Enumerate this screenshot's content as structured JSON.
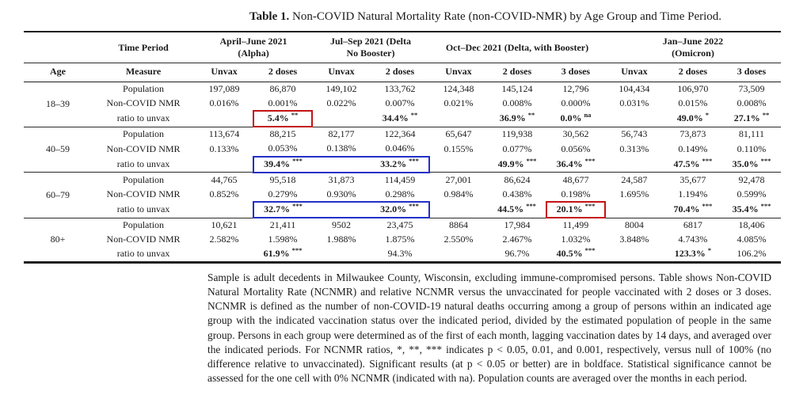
{
  "caption": {
    "label": "Table 1.",
    "text": "Non-COVID Natural Mortality Rate (non-COVID-NMR) by Age Group and Time Period."
  },
  "table": {
    "corner": {
      "time_period": "Time Period",
      "age": "Age",
      "measure": "Measure"
    },
    "groups": [
      {
        "lines": [
          "April–June 2021",
          "(Alpha)"
        ],
        "cols": [
          "Unvax",
          "2 doses"
        ]
      },
      {
        "lines": [
          "Jul–Sep 2021 (Delta",
          "No Booster)"
        ],
        "cols": [
          "Unvax",
          "2 doses"
        ]
      },
      {
        "lines": [
          "Oct–Dec 2021 (Delta, with Booster)"
        ],
        "cols": [
          "Unvax",
          "2 doses",
          "3 doses"
        ]
      },
      {
        "lines": [
          "Jan–June 2022",
          "(Omicron)"
        ],
        "cols": [
          "Unvax",
          "2 doses",
          "3 doses"
        ]
      }
    ],
    "measures": [
      "Population",
      "Non-COVID NMR",
      "ratio to unvax"
    ],
    "highlight_colors": {
      "red": "#c41414",
      "blue": "#2230c8"
    },
    "age_groups": [
      {
        "age": "18–39",
        "population": [
          "197,089",
          "86,870",
          "149,102",
          "133,762",
          "124,348",
          "145,124",
          "12,796",
          "104,434",
          "106,970",
          "73,509"
        ],
        "nmr": [
          "0.016%",
          "0.001%",
          "0.022%",
          "0.007%",
          "0.021%",
          "0.008%",
          "0.000%",
          "0.031%",
          "0.015%",
          "0.008%"
        ],
        "ratio": [
          {
            "v": ""
          },
          {
            "v": "5.4%",
            "sig": "**",
            "bold": true,
            "box": "red"
          },
          {
            "v": ""
          },
          {
            "v": "34.4%",
            "sig": "**",
            "bold": true
          },
          {
            "v": ""
          },
          {
            "v": "36.9%",
            "sig": "**",
            "bold": true
          },
          {
            "v": "0.0%",
            "sig": "na",
            "bold": true
          },
          {
            "v": ""
          },
          {
            "v": "49.0%",
            "sig": "*",
            "bold": true
          },
          {
            "v": "27.1%",
            "sig": "**",
            "bold": true
          }
        ]
      },
      {
        "age": "40–59",
        "population": [
          "113,674",
          "88,215",
          "82,177",
          "122,364",
          "65,647",
          "119,938",
          "30,562",
          "56,743",
          "73,873",
          "81,111"
        ],
        "nmr": [
          "0.133%",
          "0.053%",
          "0.138%",
          "0.046%",
          "0.155%",
          "0.077%",
          "0.056%",
          "0.313%",
          "0.149%",
          "0.110%"
        ],
        "ratio": [
          {
            "v": ""
          },
          {
            "v": "39.4%",
            "sig": "***",
            "bold": true,
            "box": "blue-start"
          },
          {
            "v": "",
            "box": "blue-mid"
          },
          {
            "v": "33.2%",
            "sig": "***",
            "bold": true,
            "box": "blue-end"
          },
          {
            "v": ""
          },
          {
            "v": "49.9%",
            "sig": "***",
            "bold": true
          },
          {
            "v": "36.4%",
            "sig": "***",
            "bold": true
          },
          {
            "v": ""
          },
          {
            "v": "47.5%",
            "sig": "***",
            "bold": true
          },
          {
            "v": "35.0%",
            "sig": "***",
            "bold": true
          }
        ]
      },
      {
        "age": "60–79",
        "population": [
          "44,765",
          "95,518",
          "31,873",
          "114,459",
          "27,001",
          "86,624",
          "48,677",
          "24,587",
          "35,677",
          "92,478"
        ],
        "nmr": [
          "0.852%",
          "0.279%",
          "0.930%",
          "0.298%",
          "0.984%",
          "0.438%",
          "0.198%",
          "1.695%",
          "1.194%",
          "0.599%"
        ],
        "ratio": [
          {
            "v": ""
          },
          {
            "v": "32.7%",
            "sig": "***",
            "bold": true,
            "box": "blue-start"
          },
          {
            "v": "",
            "box": "blue-mid"
          },
          {
            "v": "32.0%",
            "sig": "***",
            "bold": true,
            "box": "blue-end"
          },
          {
            "v": ""
          },
          {
            "v": "44.5%",
            "sig": "***",
            "bold": true
          },
          {
            "v": "20.1%",
            "sig": "***",
            "bold": true,
            "box": "red"
          },
          {
            "v": ""
          },
          {
            "v": "70.4%",
            "sig": "***",
            "bold": true
          },
          {
            "v": "35.4%",
            "sig": "***",
            "bold": true
          }
        ]
      },
      {
        "age": "80+",
        "population": [
          "10,621",
          "21,411",
          "9502",
          "23,475",
          "8864",
          "17,984",
          "11,499",
          "8004",
          "6817",
          "18,406"
        ],
        "nmr": [
          "2.582%",
          "1.598%",
          "1.988%",
          "1.875%",
          "2.550%",
          "2.467%",
          "1.032%",
          "3.848%",
          "4.743%",
          "4.085%"
        ],
        "ratio": [
          {
            "v": ""
          },
          {
            "v": "61.9%",
            "sig": "***",
            "bold": true
          },
          {
            "v": ""
          },
          {
            "v": "94.3%"
          },
          {
            "v": ""
          },
          {
            "v": "96.7%"
          },
          {
            "v": "40.5%",
            "sig": "***",
            "bold": true
          },
          {
            "v": ""
          },
          {
            "v": "123.3%",
            "sig": "*",
            "bold": true
          },
          {
            "v": "106.2%"
          }
        ]
      }
    ]
  },
  "footnote": "Sample is adult decedents in Milwaukee County, Wisconsin, excluding immune-compromised persons. Table shows Non-COVID Natural Mortality Rate (NCNMR) and relative NCNMR versus the unvaccinated for people vaccinated with 2 doses or 3 doses. NCNMR is defined as the number of non-COVID-19 natural deaths occurring among a group of persons within an indicated age group with the indicated vaccination status over the indicated period, divided by the estimated population of people in the same group. Persons in each group were determined as of the first of each month, lagging vaccination dates by 14 days, and averaged over the indicated periods. For NCNMR ratios, *, **, *** indicates p < 0.05, 0.01, and 0.001, respectively, versus null of 100% (no difference relative to unvaccinated). Significant results (at p < 0.05 or better) are in boldface. Statistical significance cannot be assessed for the one cell with 0% NCNMR (indicated with na). Population counts are averaged over the months in each period."
}
